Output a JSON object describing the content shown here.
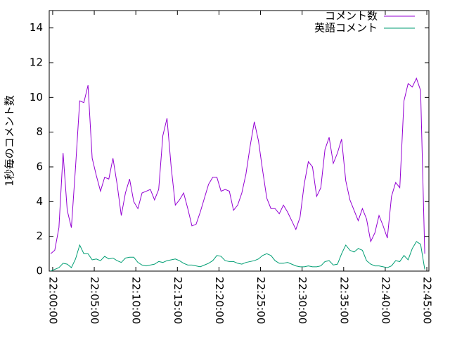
{
  "chart_data": {
    "type": "line",
    "y_label": "1秒毎のコメント数",
    "x": [
      "21:59:45",
      "22:00:15",
      "22:00:45",
      "22:01:15",
      "22:01:45",
      "22:02:15",
      "22:02:45",
      "22:03:15",
      "22:03:45",
      "22:04:15",
      "22:04:45",
      "22:05:15",
      "22:05:45",
      "22:06:15",
      "22:06:45",
      "22:07:15",
      "22:07:45",
      "22:08:15",
      "22:08:45",
      "22:09:15",
      "22:09:45",
      "22:10:15",
      "22:10:45",
      "22:11:15",
      "22:11:45",
      "22:12:15",
      "22:12:45",
      "22:13:15",
      "22:13:45",
      "22:14:15",
      "22:14:45",
      "22:15:15",
      "22:15:45",
      "22:16:15",
      "22:16:45",
      "22:17:15",
      "22:17:45",
      "22:18:15",
      "22:18:45",
      "22:19:15",
      "22:19:45",
      "22:20:15",
      "22:20:45",
      "22:21:15",
      "22:21:45",
      "22:22:15",
      "22:22:45",
      "22:23:15",
      "22:23:45",
      "22:24:15",
      "22:24:45",
      "22:25:15",
      "22:25:45",
      "22:26:15",
      "22:26:45",
      "22:27:15",
      "22:27:45",
      "22:28:15",
      "22:28:45",
      "22:29:15",
      "22:29:45",
      "22:30:15",
      "22:30:45",
      "22:31:15",
      "22:31:45",
      "22:32:15",
      "22:32:45",
      "22:33:15",
      "22:33:45",
      "22:34:15",
      "22:34:45",
      "22:35:15",
      "22:35:45",
      "22:36:15",
      "22:36:45",
      "22:37:15",
      "22:37:45",
      "22:38:15",
      "22:38:45",
      "22:39:15",
      "22:39:45",
      "22:40:15",
      "22:40:45",
      "22:41:15",
      "22:41:45",
      "22:42:15",
      "22:42:45",
      "22:43:15",
      "22:43:45",
      "22:44:15",
      "22:44:45"
    ],
    "series": [
      {
        "name": "コメント数",
        "color": "#9400d3",
        "values": [
          1.0,
          1.2,
          2.5,
          6.8,
          3.5,
          2.5,
          6,
          9.8,
          9.7,
          10.7,
          6.5,
          5.5,
          4.6,
          5.4,
          5.3,
          6.5,
          5,
          3.2,
          4.5,
          5.3,
          4,
          3.6,
          4.5,
          4.6,
          4.7,
          4.1,
          4.7,
          7.8,
          8.8,
          6,
          3.8,
          4.1,
          4.5,
          3.6,
          2.6,
          2.7,
          3.4,
          4.2,
          5,
          5.4,
          5.4,
          4.6,
          4.7,
          4.6,
          3.5,
          3.8,
          4.5,
          5.6,
          7.2,
          8.6,
          7.5,
          5.8,
          4.2,
          3.6,
          3.6,
          3.3,
          3.8,
          3.4,
          2.9,
          2.4,
          3.1,
          5,
          6.3,
          6,
          4.3,
          4.8,
          7,
          7.7,
          6.2,
          6.8,
          7.6,
          5.2,
          4.1,
          3.5,
          2.9,
          3.6,
          3,
          1.7,
          2.2,
          3.2,
          2.6,
          1.9,
          4.3,
          5.1,
          4.8,
          9.8,
          10.8,
          10.6,
          11.1,
          10.4,
          1.0
        ]
      },
      {
        "name": "英語コメント",
        "color": "#009e73",
        "values": [
          0,
          0.1,
          0.2,
          0.45,
          0.4,
          0.2,
          0.7,
          1.5,
          1.0,
          1.0,
          0.65,
          0.7,
          0.6,
          0.85,
          0.7,
          0.75,
          0.6,
          0.5,
          0.75,
          0.8,
          0.8,
          0.5,
          0.35,
          0.3,
          0.35,
          0.4,
          0.55,
          0.5,
          0.6,
          0.65,
          0.7,
          0.6,
          0.45,
          0.35,
          0.35,
          0.3,
          0.25,
          0.35,
          0.45,
          0.6,
          0.9,
          0.85,
          0.6,
          0.55,
          0.55,
          0.45,
          0.4,
          0.5,
          0.55,
          0.6,
          0.7,
          0.9,
          1.0,
          0.9,
          0.6,
          0.45,
          0.45,
          0.5,
          0.4,
          0.3,
          0.25,
          0.25,
          0.3,
          0.25,
          0.25,
          0.3,
          0.55,
          0.6,
          0.35,
          0.4,
          1.0,
          1.5,
          1.2,
          1.1,
          1.3,
          1.2,
          0.6,
          0.4,
          0.3,
          0.3,
          0.25,
          0.2,
          0.3,
          0.6,
          0.55,
          0.9,
          0.65,
          1.3,
          1.7,
          1.55,
          0.1
        ]
      }
    ],
    "xlim": [
      "21:59:35",
      "22:45:15"
    ],
    "xticks": [
      "22:00:00",
      "22:05:00",
      "22:10:00",
      "22:15:00",
      "22:20:00",
      "22:25:00",
      "22:30:00",
      "22:35:00",
      "22:40:00",
      "22:45:00"
    ],
    "ylim": [
      0,
      15
    ],
    "yticks": [
      0,
      2,
      4,
      6,
      8,
      10,
      12,
      14
    ],
    "legend": "top-right"
  }
}
